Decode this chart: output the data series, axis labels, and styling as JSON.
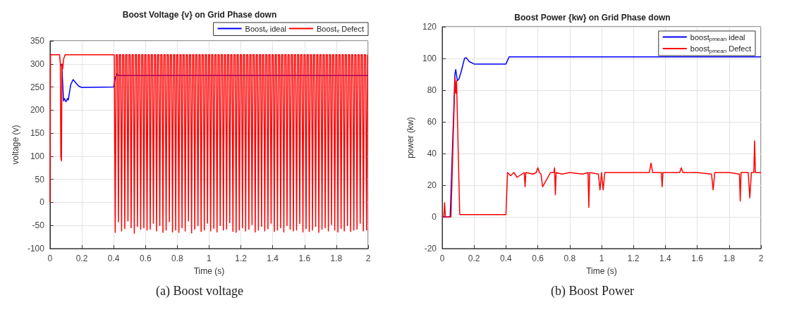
{
  "chart_data": [
    {
      "type": "line",
      "title": "Boost Voltage {v} on Grid Phase down",
      "xlabel": "Time (s)",
      "ylabel": "voltage (v)",
      "annotations": [
        "(a) Boost voltage"
      ],
      "xlim": [
        0,
        2
      ],
      "xticks": [
        0,
        0.2,
        0.4,
        0.6,
        0.8,
        1,
        1.2,
        1.4,
        1.6,
        1.8,
        2
      ],
      "ylim": [
        -100,
        350
      ],
      "yticks": [
        -100,
        -50,
        0,
        50,
        100,
        150,
        200,
        250,
        300,
        350
      ],
      "grid": true,
      "legend": "top",
      "marker": "none",
      "line_style": "solid",
      "series": [
        {
          "name": "Boost$_{v}$ ideal",
          "color": "#0000ff",
          "x": [
            0.07,
            0.075,
            0.085,
            0.09,
            0.1,
            0.11,
            0.115,
            0.13,
            0.145,
            0.16,
            0.18,
            0.2,
            0.4,
            0.41,
            0.42,
            0.43,
            2.0
          ],
          "values": [
            300,
            292,
            220,
            225,
            218,
            225,
            222,
            255,
            266,
            260,
            252,
            249,
            250,
            270,
            278,
            275,
            275
          ]
        },
        {
          "name": "Boost$_{v}$ Defect",
          "color": "#ff0000",
          "x": [
            0,
            0.003,
            0.06,
            0.065,
            0.068,
            0.072,
            0.075,
            0.08,
            0.085,
            0.095,
            0.4,
            0.404,
            0.41,
            0.416,
            0.424,
            0.43,
            0.436,
            0.444,
            0.45,
            0.456,
            0.464,
            0.47,
            0.476,
            0.484,
            0.49,
            0.496,
            0.504,
            0.51,
            0.516,
            0.524,
            0.53,
            0.536,
            0.544,
            0.55,
            0.556,
            0.564,
            0.57,
            0.576,
            0.584,
            0.59,
            0.596,
            0.604,
            0.61,
            0.616,
            0.624,
            0.63,
            0.636,
            0.644,
            0.65,
            0.656,
            0.664,
            0.67,
            0.676,
            0.684,
            0.69,
            0.696,
            0.704,
            0.71,
            0.716,
            0.724,
            0.73,
            0.736,
            0.744,
            0.75,
            0.756,
            0.764,
            0.77,
            0.776,
            0.784,
            0.79,
            0.796,
            0.804,
            0.81,
            0.816,
            0.824,
            0.83,
            0.836,
            0.844,
            0.85,
            0.856,
            0.864,
            0.87,
            0.876,
            0.884,
            0.89,
            0.896,
            0.904,
            0.91,
            0.916,
            0.924,
            0.93,
            0.936,
            0.944,
            0.95,
            0.956,
            0.964,
            0.97,
            0.976,
            0.984,
            0.99,
            0.996,
            1.004,
            1.01,
            1.016,
            1.024,
            1.03,
            1.036,
            1.044,
            1.05,
            1.056,
            1.064,
            1.07,
            1.076,
            1.084,
            1.09,
            1.096,
            1.104,
            1.11,
            1.116,
            1.124,
            1.13,
            1.136,
            1.144,
            1.15,
            1.156,
            1.164,
            1.17,
            1.176,
            1.184,
            1.19,
            1.196,
            1.204,
            1.21,
            1.216,
            1.224,
            1.23,
            1.236,
            1.244,
            1.25,
            1.256,
            1.264,
            1.27,
            1.276,
            1.284,
            1.29,
            1.296,
            1.304,
            1.31,
            1.316,
            1.324,
            1.33,
            1.336,
            1.344,
            1.35,
            1.356,
            1.364,
            1.37,
            1.376,
            1.384,
            1.39,
            1.396,
            1.404,
            1.41,
            1.416,
            1.424,
            1.43,
            1.436,
            1.444,
            1.45,
            1.456,
            1.464,
            1.47,
            1.476,
            1.484,
            1.49,
            1.496,
            1.504,
            1.51,
            1.516,
            1.524,
            1.53,
            1.536,
            1.544,
            1.55,
            1.556,
            1.564,
            1.57,
            1.576,
            1.584,
            1.59,
            1.596,
            1.604,
            1.61,
            1.616,
            1.624,
            1.63,
            1.636,
            1.644,
            1.65,
            1.656,
            1.664,
            1.67,
            1.676,
            1.684,
            1.69,
            1.696,
            1.704,
            1.71,
            1.716,
            1.724,
            1.73,
            1.736,
            1.744,
            1.75,
            1.756,
            1.764,
            1.77,
            1.776,
            1.784,
            1.79,
            1.796,
            1.804,
            1.81,
            1.816,
            1.824,
            1.83,
            1.836,
            1.844,
            1.85,
            1.856,
            1.864,
            1.87,
            1.876,
            1.884,
            1.89,
            1.896,
            1.904,
            1.91,
            1.916,
            1.924,
            1.93,
            1.936,
            1.944,
            1.95,
            1.956,
            1.964,
            1.97,
            1.976,
            1.984,
            1.99,
            1.996
          ],
          "values": [
            0,
            320,
            320,
            300,
            100,
            90,
            300,
            290,
            310,
            320,
            320,
            320,
            -65,
            320,
            320,
            -42,
            320,
            320,
            -62,
            320,
            320,
            -57,
            320,
            320,
            -40,
            320,
            320,
            -55,
            320,
            320,
            -67,
            320,
            320,
            -52,
            320,
            320,
            -58,
            320,
            320,
            -55,
            320,
            320,
            -60,
            320,
            320,
            -58,
            320,
            320,
            -45,
            320,
            320,
            -62,
            320,
            320,
            -50,
            320,
            320,
            -65,
            320,
            320,
            -60,
            320,
            320,
            -42,
            320,
            320,
            -64,
            320,
            320,
            -60,
            320,
            320,
            -65,
            320,
            320,
            -55,
            320,
            320,
            -62,
            320,
            320,
            -40,
            320,
            320,
            -66,
            320,
            320,
            -58,
            320,
            320,
            -50,
            320,
            320,
            -63,
            320,
            320,
            -60,
            320,
            320,
            -45,
            320,
            320,
            -62,
            320,
            320,
            -56,
            320,
            320,
            -64,
            320,
            320,
            -50,
            320,
            320,
            -60,
            320,
            320,
            -58,
            320,
            320,
            -44,
            320,
            320,
            -63,
            320,
            320,
            -65,
            320,
            320,
            -60,
            320,
            320,
            -55,
            320,
            320,
            -62,
            320,
            320,
            -58,
            320,
            320,
            -48,
            320,
            320,
            -64,
            320,
            320,
            -60,
            320,
            320,
            -52,
            320,
            320,
            -62,
            320,
            320,
            -57,
            320,
            320,
            -45,
            320,
            320,
            -63,
            320,
            320,
            -60,
            320,
            320,
            -55,
            320,
            320,
            -64,
            320,
            320,
            -50,
            320,
            320,
            -58,
            320,
            320,
            -62,
            320,
            320,
            -60,
            320,
            320,
            -46,
            320,
            320,
            -64,
            320,
            320,
            -57,
            320,
            320,
            -63,
            320,
            320,
            -60,
            320,
            320,
            -52,
            320,
            320,
            -65,
            320,
            320,
            -58,
            320,
            320,
            -55,
            320,
            320,
            -62,
            320,
            320,
            -48,
            320,
            320,
            -60,
            320,
            320,
            -64,
            320,
            320,
            -56,
            320,
            320,
            -62,
            320,
            320,
            -50,
            320,
            320,
            -63,
            320,
            320,
            -60,
            320,
            320,
            -58,
            320,
            320,
            -45,
            320,
            320,
            -62,
            320,
            320,
            -60,
            320
          ]
        }
      ]
    },
    {
      "type": "line",
      "title": "Boost Power {kw} on Grid Phase down",
      "xlabel": "Time (s)",
      "ylabel": "power (kw)",
      "annotations": [
        "(b) Boost Power"
      ],
      "xlim": [
        0,
        2
      ],
      "xticks": [
        0,
        0.2,
        0.4,
        0.6,
        0.8,
        1,
        1.2,
        1.4,
        1.6,
        1.8,
        2
      ],
      "ylim": [
        -20,
        120
      ],
      "yticks": [
        -20,
        0,
        20,
        40,
        60,
        80,
        100,
        120
      ],
      "grid": true,
      "legend": "top right",
      "marker": "none",
      "line_style": "solid",
      "series": [
        {
          "name": "boost$_{pmean}$ ideal",
          "color": "#0000ff",
          "x": [
            0,
            0.05,
            0.08,
            0.085,
            0.095,
            0.105,
            0.12,
            0.14,
            0.15,
            0.17,
            0.2,
            0.4,
            0.42,
            2.0
          ],
          "values": [
            0,
            0,
            90,
            93,
            86,
            87,
            92,
            100,
            100.5,
            98,
            96.5,
            96.5,
            101,
            101
          ]
        },
        {
          "name": "boost$_{pmean}$ Defect",
          "color": "#ff0000",
          "x": [
            0,
            0.01,
            0.015,
            0.02,
            0.055,
            0.08,
            0.085,
            0.09,
            0.11,
            0.4,
            0.41,
            0.43,
            0.45,
            0.47,
            0.5,
            0.515,
            0.52,
            0.525,
            0.57,
            0.59,
            0.6,
            0.61,
            0.62,
            0.63,
            0.68,
            0.7,
            0.705,
            0.71,
            0.715,
            0.75,
            0.8,
            0.88,
            0.915,
            0.92,
            0.925,
            0.98,
            0.99,
            1.0,
            1.01,
            1.02,
            1.1,
            1.2,
            1.3,
            1.31,
            1.32,
            1.375,
            1.38,
            1.385,
            1.49,
            1.5,
            1.51,
            1.6,
            1.69,
            1.7,
            1.71,
            1.8,
            1.865,
            1.87,
            1.875,
            1.92,
            1.93,
            1.94,
            1.955,
            1.96,
            1.965,
            2.0
          ],
          "values": [
            0,
            0,
            9,
            0,
            0,
            88,
            78,
            86,
            1.5,
            1.5,
            28,
            26,
            28,
            25,
            27,
            28,
            19,
            28,
            27,
            28,
            31,
            28,
            27,
            19,
            28,
            28,
            31,
            14,
            28,
            27,
            28,
            27,
            28,
            6,
            28,
            27,
            17,
            28,
            17,
            28,
            28,
            28,
            28,
            34,
            28,
            28,
            19,
            28,
            28,
            31,
            28,
            28,
            27,
            17,
            28,
            28,
            27,
            10,
            28,
            28,
            12,
            28,
            28,
            48,
            28,
            28
          ]
        }
      ]
    }
  ]
}
